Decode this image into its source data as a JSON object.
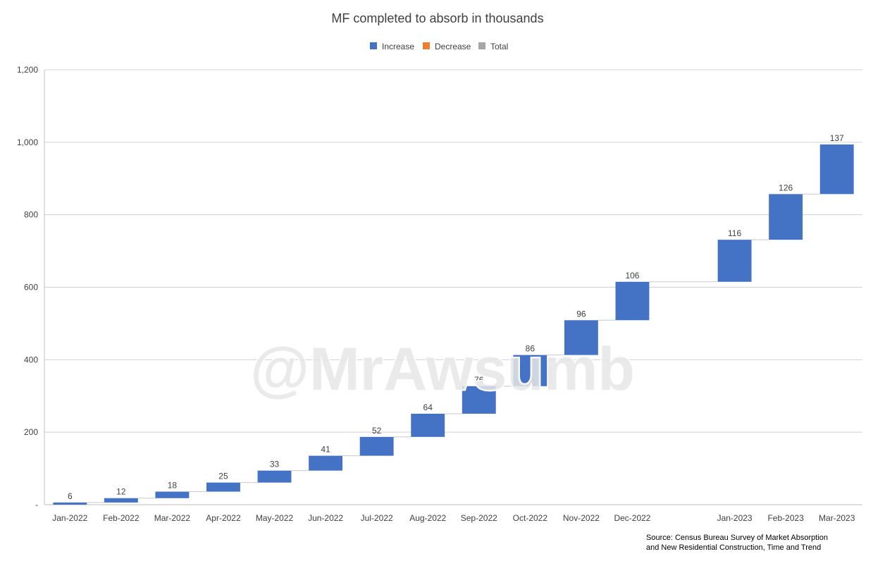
{
  "chart_data": {
    "type": "waterfall",
    "title": "MF completed to absorb in thousands",
    "legend": {
      "placement": "top-center",
      "entries": [
        {
          "name": "Increase",
          "color": "#4472c4"
        },
        {
          "name": "Decrease",
          "color": "#ed7d31"
        },
        {
          "name": "Total",
          "color": "#a5a5a5"
        }
      ]
    },
    "categories": [
      "Jan-2022",
      "Feb-2022",
      "Mar-2022",
      "Apr-2022",
      "May-2022",
      "Jun-2022",
      "Jul-2022",
      "Aug-2022",
      "Sep-2022",
      "Oct-2022",
      "Nov-2022",
      "Dec-2022",
      "",
      "Jan-2023",
      "Feb-2023",
      "Mar-2023"
    ],
    "values": [
      6,
      12,
      18,
      25,
      33,
      41,
      52,
      64,
      76,
      86,
      96,
      106,
      null,
      116,
      126,
      137
    ],
    "ylim": [
      0,
      1200
    ],
    "yticks": [
      0,
      200,
      400,
      600,
      800,
      1000,
      1200
    ],
    "ytick_labels": [
      "-",
      "200",
      "400",
      "600",
      "800",
      "1,000",
      "1,200"
    ],
    "grid": true,
    "xlabel": "",
    "ylabel": ""
  },
  "watermark": "@MrAwsumb",
  "source": {
    "line1": "Source: Census Bureau Survey of Market Absorption",
    "line2": "and New Residential Construction, Time and Trend"
  }
}
